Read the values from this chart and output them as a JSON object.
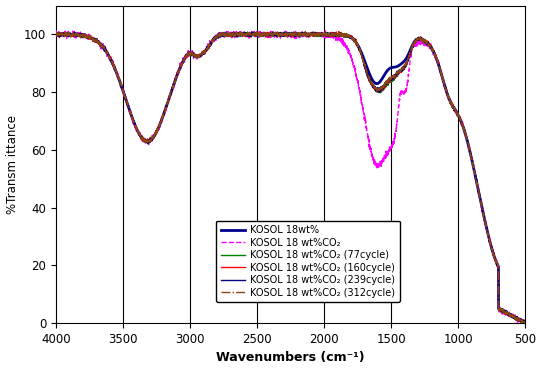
{
  "xlabel": "Wavenumbers (cm⁻¹)",
  "ylabel": "%Transm ittance",
  "xlim": [
    4000,
    500
  ],
  "ylim": [
    0,
    110
  ],
  "yticks": [
    0,
    20,
    40,
    60,
    80,
    100
  ],
  "xticks": [
    4000,
    3500,
    3000,
    2500,
    2000,
    1500,
    1000,
    500
  ],
  "vlines": [
    3500,
    3000,
    2500,
    2000,
    1500,
    1000
  ],
  "legend_labels": [
    "KOSOL 18wt%",
    "KOSOL 18 wt%CO₂",
    "KOSOL 18 wt%CO₂ (77cycle)",
    "KOSOL 18 wt%CO₂ (160cycle)",
    "KOSOL 18 wt%CO₂ (239cycle)",
    "KOSOL 18 wt%CO₂ (312cycle)"
  ],
  "line_colors": [
    "#00008B",
    "#FF00FF",
    "#008000",
    "#FF0000",
    "#000080",
    "#8B4513"
  ],
  "line_styles": [
    "-",
    "--",
    "-",
    "-",
    "-",
    "-."
  ],
  "line_widths": [
    2.0,
    1.0,
    1.0,
    1.0,
    1.0,
    1.0
  ],
  "background_color": "#ffffff",
  "grid_color": "#000000"
}
